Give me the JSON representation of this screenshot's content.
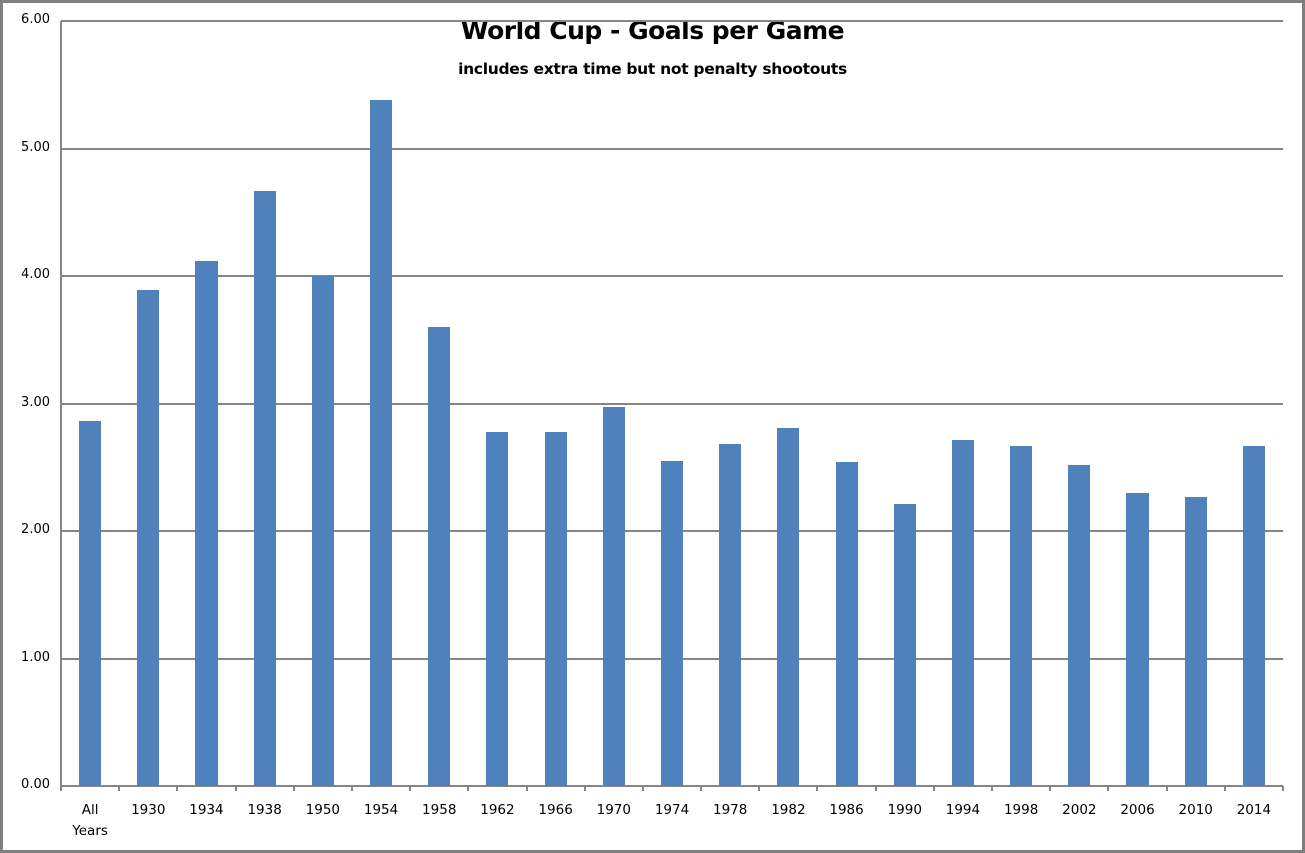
{
  "chart_data": {
    "type": "bar",
    "title": "World Cup - Goals per Game",
    "subtitle": "includes extra time but not penalty shootouts",
    "xlabel": "",
    "ylabel": "",
    "ylim": [
      0,
      6
    ],
    "yticks": [
      "0.00",
      "1.00",
      "2.00",
      "3.00",
      "4.00",
      "5.00",
      "6.00"
    ],
    "grid": true,
    "legend": "none",
    "color": "#4f81bd",
    "categories": [
      "All Years",
      "1930",
      "1934",
      "1938",
      "1950",
      "1954",
      "1958",
      "1962",
      "1966",
      "1970",
      "1974",
      "1978",
      "1982",
      "1986",
      "1990",
      "1994",
      "1998",
      "2002",
      "2006",
      "2010",
      "2014"
    ],
    "category_lines": [
      [
        "All",
        "Years"
      ],
      [
        "1930"
      ],
      [
        "1934"
      ],
      [
        "1938"
      ],
      [
        "1950"
      ],
      [
        "1954"
      ],
      [
        "1958"
      ],
      [
        "1962"
      ],
      [
        "1966"
      ],
      [
        "1970"
      ],
      [
        "1974"
      ],
      [
        "1978"
      ],
      [
        "1982"
      ],
      [
        "1986"
      ],
      [
        "1990"
      ],
      [
        "1994"
      ],
      [
        "1998"
      ],
      [
        "2002"
      ],
      [
        "2006"
      ],
      [
        "2010"
      ],
      [
        "2014"
      ]
    ],
    "values": [
      2.86,
      3.89,
      4.12,
      4.67,
      4.0,
      5.38,
      3.6,
      2.78,
      2.78,
      2.97,
      2.55,
      2.68,
      2.81,
      2.54,
      2.21,
      2.71,
      2.67,
      2.52,
      2.3,
      2.27,
      2.67
    ]
  }
}
